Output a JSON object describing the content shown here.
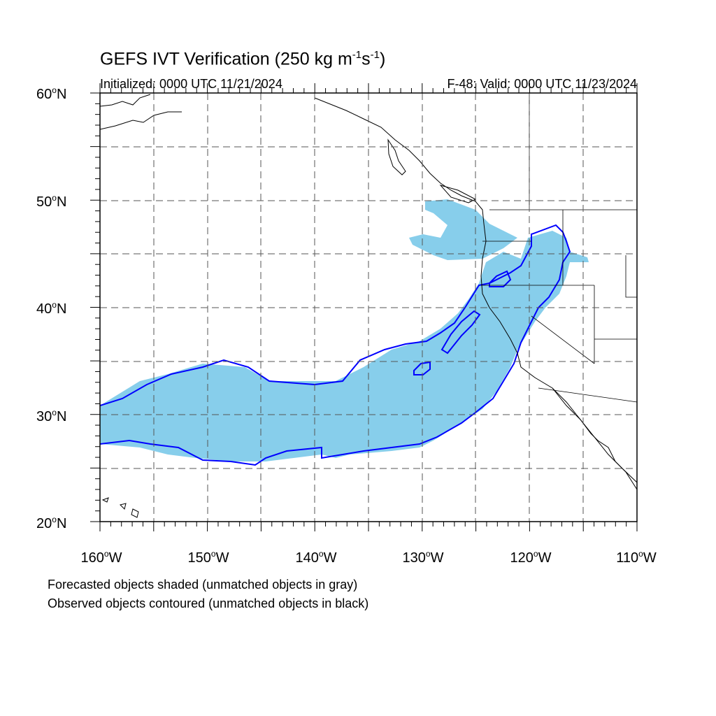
{
  "title": {
    "main": "GEFS IVT Verification (250 kg m",
    "exp1": "-1",
    "unit_s": "s",
    "exp2": "-1",
    "close": ")"
  },
  "subtitle": {
    "initialized": "Initialized: 0000 UTC 11/21/2024",
    "valid": "F-48: Valid: 0000 UTC 11/23/2024"
  },
  "axes": {
    "lat_labels": [
      "60",
      "50",
      "40",
      "30",
      "20"
    ],
    "lat_suffix": "N",
    "lon_labels": [
      "160",
      "150",
      "140",
      "130",
      "120",
      "110"
    ],
    "lon_suffix": "W",
    "degree_symbol": "o"
  },
  "notes": {
    "line1": "Forecasted objects shaded (unmatched objects in gray)",
    "line2": "Observed objects contoured (unmatched objects in black)"
  },
  "colors": {
    "forecast_fill": "#87ceeb",
    "observed_contour": "#0000ff",
    "coastline": "#000000",
    "grid": "#555555"
  },
  "map_extent": {
    "lon_min": -160,
    "lon_max": -110,
    "lat_min": 20,
    "lat_max": 60
  }
}
